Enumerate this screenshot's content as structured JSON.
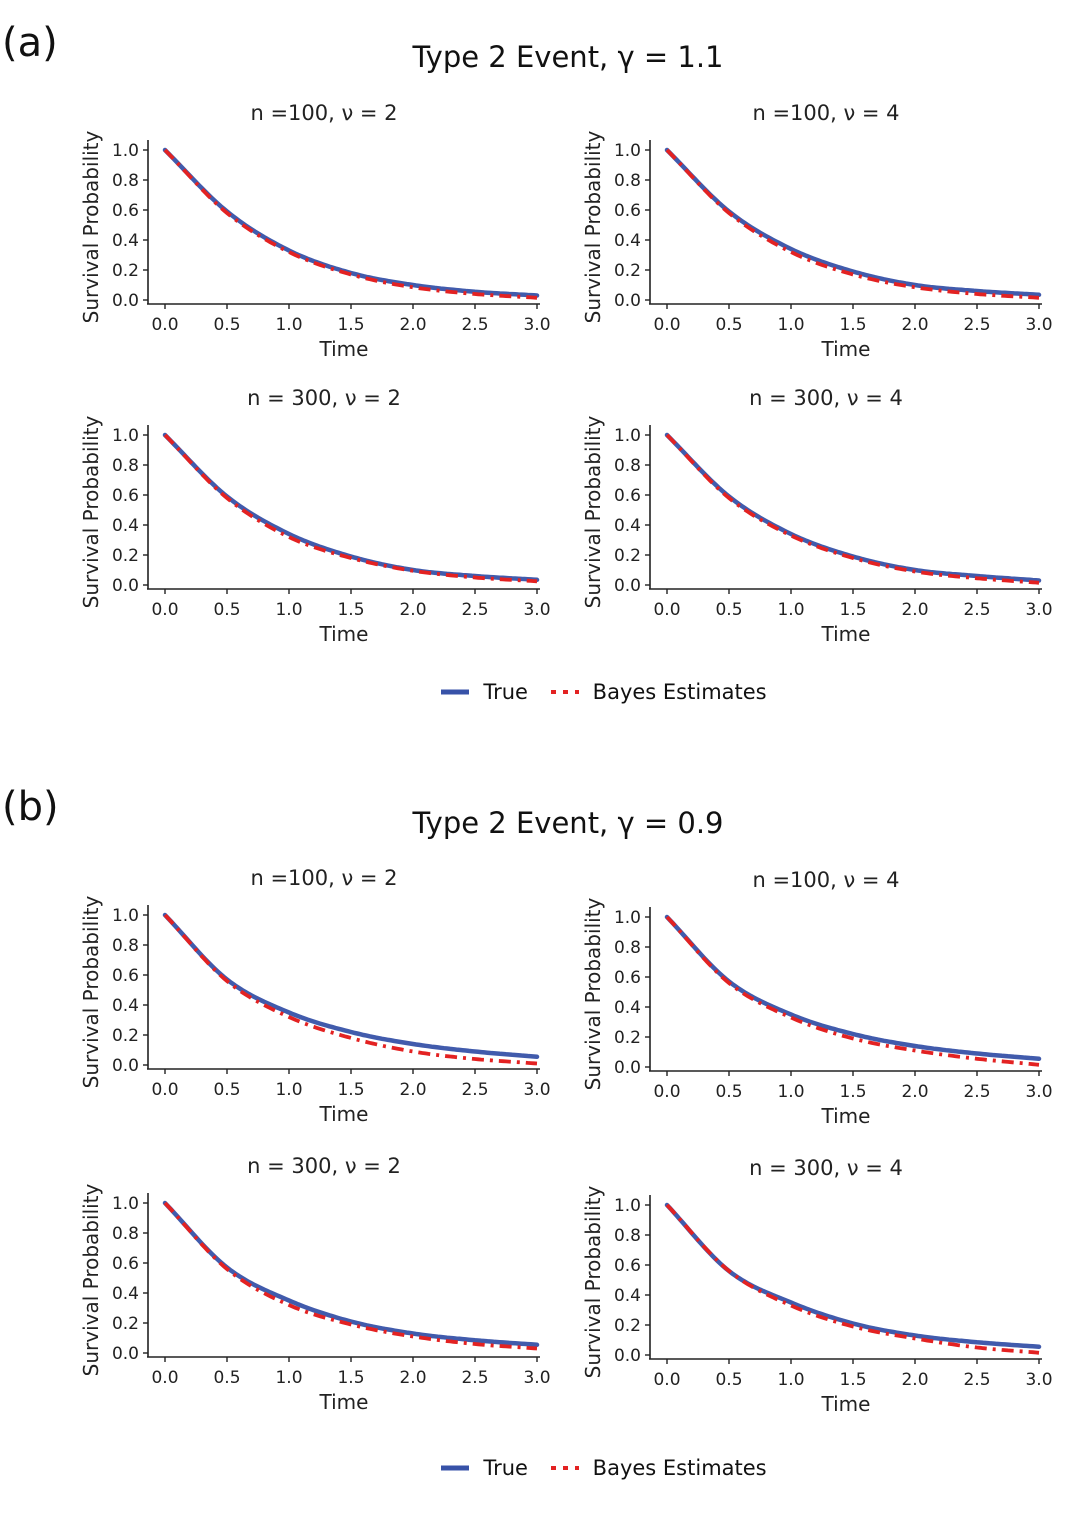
{
  "figure": {
    "panels": [
      {
        "letter": "(a)",
        "title": "Type 2 Event, γ = 1.1"
      },
      {
        "letter": "(b)",
        "title": "Type 2 Event, γ = 0.9"
      }
    ],
    "legend": {
      "true_label": "True",
      "estimate_label": "Bayes Estimates"
    },
    "colors": {
      "true": "#3752a8",
      "estimate": "#e32222"
    }
  },
  "chart_data": [
    {
      "type": "line",
      "panel": "a",
      "title": "n =100, ν = 2",
      "xlabel": "Time",
      "ylabel": "Survival Probability",
      "xlim": [
        0,
        3
      ],
      "ylim": [
        0,
        1
      ],
      "xticks": [
        "0.0",
        "0.5",
        "1.0",
        "1.5",
        "2.0",
        "2.5",
        "3.0"
      ],
      "yticks": [
        "0.0",
        "0.2",
        "0.4",
        "0.6",
        "0.8",
        "1.0"
      ],
      "x": [
        0,
        0.5,
        1.0,
        1.5,
        2.0,
        2.5,
        3.0
      ],
      "series": [
        {
          "name": "True",
          "values": [
            1.0,
            0.59,
            0.33,
            0.18,
            0.1,
            0.055,
            0.03
          ]
        },
        {
          "name": "Bayes Estimates",
          "values": [
            1.0,
            0.58,
            0.32,
            0.17,
            0.085,
            0.04,
            0.015
          ]
        }
      ]
    },
    {
      "type": "line",
      "panel": "a",
      "title": "n =100, ν = 4",
      "xlabel": "Time",
      "ylabel": "Survival Probability",
      "xlim": [
        0,
        3
      ],
      "ylim": [
        0,
        1
      ],
      "xticks": [
        "0.0",
        "0.5",
        "1.0",
        "1.5",
        "2.0",
        "2.5",
        "3.0"
      ],
      "yticks": [
        "0.0",
        "0.2",
        "0.4",
        "0.6",
        "0.8",
        "1.0"
      ],
      "x": [
        0,
        0.5,
        1.0,
        1.5,
        2.0,
        2.5,
        3.0
      ],
      "series": [
        {
          "name": "True",
          "values": [
            1.0,
            0.59,
            0.34,
            0.19,
            0.1,
            0.06,
            0.035
          ]
        },
        {
          "name": "Bayes Estimates",
          "values": [
            1.0,
            0.58,
            0.32,
            0.17,
            0.085,
            0.04,
            0.015
          ]
        }
      ]
    },
    {
      "type": "line",
      "panel": "a",
      "title": "n = 300, ν = 2",
      "xlabel": "Time",
      "ylabel": "Survival Probability",
      "xlim": [
        0,
        3
      ],
      "ylim": [
        0,
        1
      ],
      "xticks": [
        "0.0",
        "0.5",
        "1.0",
        "1.5",
        "2.0",
        "2.5",
        "3.0"
      ],
      "yticks": [
        "0.0",
        "0.2",
        "0.4",
        "0.6",
        "0.8",
        "1.0"
      ],
      "x": [
        0,
        0.5,
        1.0,
        1.5,
        2.0,
        2.5,
        3.0
      ],
      "series": [
        {
          "name": "True",
          "values": [
            1.0,
            0.59,
            0.34,
            0.19,
            0.1,
            0.06,
            0.035
          ]
        },
        {
          "name": "Bayes Estimates",
          "values": [
            1.0,
            0.58,
            0.32,
            0.18,
            0.095,
            0.05,
            0.025
          ]
        }
      ]
    },
    {
      "type": "line",
      "panel": "a",
      "title": "n = 300, ν = 4",
      "xlabel": "Time",
      "ylabel": "Survival Probability",
      "xlim": [
        0,
        3
      ],
      "ylim": [
        0,
        1
      ],
      "xticks": [
        "0.0",
        "0.5",
        "1.0",
        "1.5",
        "2.0",
        "2.5",
        "3.0"
      ],
      "yticks": [
        "0.0",
        "0.2",
        "0.4",
        "0.6",
        "0.8",
        "1.0"
      ],
      "x": [
        0,
        0.5,
        1.0,
        1.5,
        2.0,
        2.5,
        3.0
      ],
      "series": [
        {
          "name": "True",
          "values": [
            1.0,
            0.59,
            0.34,
            0.19,
            0.1,
            0.06,
            0.03
          ]
        },
        {
          "name": "Bayes Estimates",
          "values": [
            1.0,
            0.58,
            0.33,
            0.18,
            0.09,
            0.045,
            0.015
          ]
        }
      ]
    },
    {
      "type": "line",
      "panel": "b",
      "title": "n =100, ν = 2",
      "xlabel": "Time",
      "ylabel": "Survival Probability",
      "xlim": [
        0,
        3
      ],
      "ylim": [
        0,
        1
      ],
      "xticks": [
        "0.0",
        "0.5",
        "1.0",
        "1.5",
        "2.0",
        "2.5",
        "3.0"
      ],
      "yticks": [
        "0.0",
        "0.2",
        "0.4",
        "0.6",
        "0.8",
        "1.0"
      ],
      "x": [
        0,
        0.5,
        1.0,
        1.5,
        2.0,
        2.5,
        3.0
      ],
      "series": [
        {
          "name": "True",
          "values": [
            1.0,
            0.57,
            0.35,
            0.22,
            0.14,
            0.09,
            0.055
          ]
        },
        {
          "name": "Bayes Estimates",
          "values": [
            1.0,
            0.56,
            0.32,
            0.18,
            0.09,
            0.04,
            0.01
          ]
        }
      ]
    },
    {
      "type": "line",
      "panel": "b",
      "title": "n =100, ν = 4",
      "xlabel": "Time",
      "ylabel": "Survival Probability",
      "xlim": [
        0,
        3
      ],
      "ylim": [
        0,
        1
      ],
      "xticks": [
        "0.0",
        "0.5",
        "1.0",
        "1.5",
        "2.0",
        "2.5",
        "3.0"
      ],
      "yticks": [
        "0.0",
        "0.2",
        "0.4",
        "0.6",
        "0.8",
        "1.0"
      ],
      "x": [
        0,
        0.5,
        1.0,
        1.5,
        2.0,
        2.5,
        3.0
      ],
      "series": [
        {
          "name": "True",
          "values": [
            1.0,
            0.57,
            0.35,
            0.22,
            0.14,
            0.09,
            0.055
          ]
        },
        {
          "name": "Bayes Estimates",
          "values": [
            1.0,
            0.56,
            0.33,
            0.19,
            0.11,
            0.055,
            0.015
          ]
        }
      ]
    },
    {
      "type": "line",
      "panel": "b",
      "title": "n = 300, ν = 2",
      "xlabel": "Time",
      "ylabel": "Survival Probability",
      "xlim": [
        0,
        3
      ],
      "ylim": [
        0,
        1
      ],
      "xticks": [
        "0.0",
        "0.5",
        "1.0",
        "1.5",
        "2.0",
        "2.5",
        "3.0"
      ],
      "yticks": [
        "0.0",
        "0.2",
        "0.4",
        "0.6",
        "0.8",
        "1.0"
      ],
      "x": [
        0,
        0.5,
        1.0,
        1.5,
        2.0,
        2.5,
        3.0
      ],
      "series": [
        {
          "name": "True",
          "values": [
            1.0,
            0.57,
            0.35,
            0.21,
            0.13,
            0.085,
            0.055
          ]
        },
        {
          "name": "Bayes Estimates",
          "values": [
            1.0,
            0.56,
            0.32,
            0.19,
            0.11,
            0.06,
            0.03
          ]
        }
      ]
    },
    {
      "type": "line",
      "panel": "b",
      "title": "n = 300, ν = 4",
      "xlabel": "Time",
      "ylabel": "Survival Probability",
      "xlim": [
        0,
        3
      ],
      "ylim": [
        0,
        1
      ],
      "xticks": [
        "0.0",
        "0.5",
        "1.0",
        "1.5",
        "2.0",
        "2.5",
        "3.0"
      ],
      "yticks": [
        "0.0",
        "0.2",
        "0.4",
        "0.6",
        "0.8",
        "1.0"
      ],
      "x": [
        0,
        0.5,
        1.0,
        1.5,
        2.0,
        2.5,
        3.0
      ],
      "series": [
        {
          "name": "True",
          "values": [
            1.0,
            0.56,
            0.35,
            0.21,
            0.13,
            0.085,
            0.055
          ]
        },
        {
          "name": "Bayes Estimates",
          "values": [
            1.0,
            0.56,
            0.33,
            0.19,
            0.11,
            0.05,
            0.015
          ]
        }
      ]
    }
  ]
}
